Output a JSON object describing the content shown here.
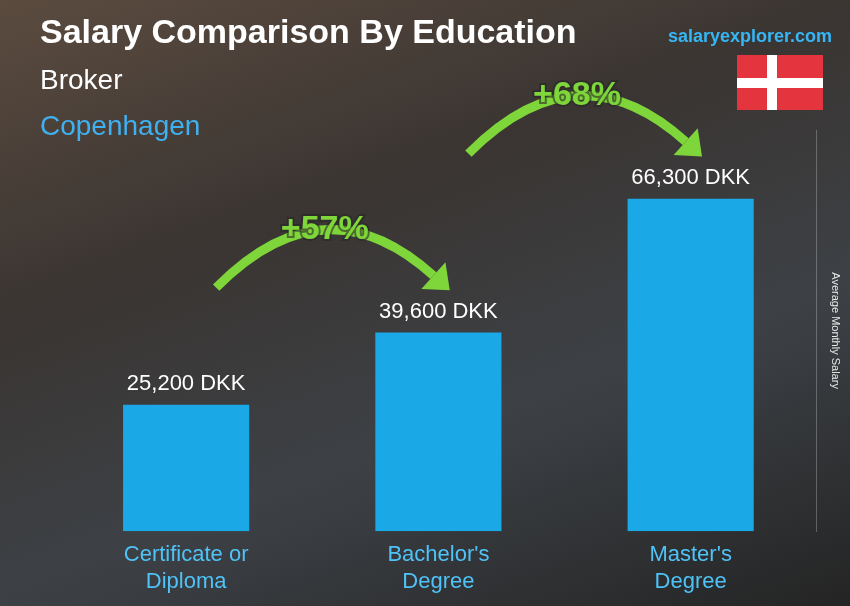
{
  "chart_data": {
    "type": "bar",
    "title": "Salary Comparison By Education",
    "subtitle": "Broker",
    "location": "Copenhagen",
    "source": "salaryexplorer.com",
    "ylabel": "Average Monthly Salary",
    "categories": [
      "Certificate or Diploma",
      "Bachelor's Degree",
      "Master's Degree"
    ],
    "values": [
      25200,
      39600,
      66300
    ],
    "value_labels": [
      "25,200 DKK",
      "39,600 DKK",
      "66,300 DKK"
    ],
    "color": "#1ba8e6",
    "ylim": [
      0,
      80000
    ],
    "grid": false,
    "data_labels": true,
    "tick_labels": "x",
    "annotations": [
      {
        "text": "+57%",
        "from": "Certificate or Diploma",
        "to": "Bachelor's Degree"
      },
      {
        "text": "+68%",
        "from": "Bachelor's Degree",
        "to": "Master's Degree"
      }
    ]
  }
}
